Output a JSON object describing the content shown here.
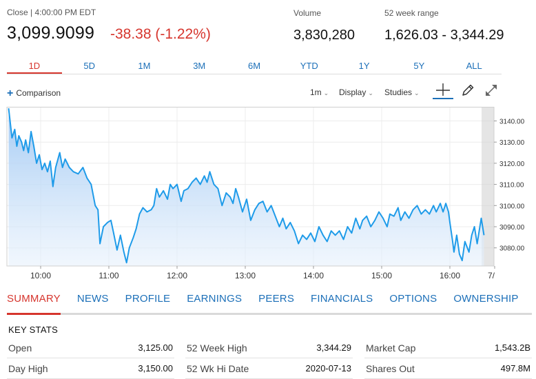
{
  "quote": {
    "close_label": "Close | 4:00:00 PM EDT",
    "price": "3,099.9099",
    "change": "-38.38 (-1.22%)",
    "volume_label": "Volume",
    "volume": "3,830,280",
    "range_label": "52 week range",
    "range": "1,626.03 - 3,344.29"
  },
  "time_ranges": [
    "1D",
    "5D",
    "1M",
    "3M",
    "6M",
    "YTD",
    "1Y",
    "5Y",
    "ALL"
  ],
  "toolbar": {
    "comparison": "Comparison",
    "interval": "1m",
    "display": "Display",
    "studies": "Studies",
    "icons": [
      "crosshair-icon",
      "pencil-icon",
      "expand-icon"
    ]
  },
  "chart_data": {
    "type": "line",
    "x_ticks": [
      "10:00",
      "11:00",
      "12:00",
      "13:00",
      "14:00",
      "15:00",
      "16:00",
      "7/"
    ],
    "y_ticks": [
      "3140.00",
      "3130.00",
      "3120.00",
      "3110.00",
      "3100.00",
      "3090.00",
      "3080.00"
    ],
    "ylim": [
      3072,
      3146
    ],
    "grid": true,
    "series": [
      {
        "points": [
          [
            9.53,
            3146
          ],
          [
            9.58,
            3132
          ],
          [
            9.62,
            3136
          ],
          [
            9.65,
            3128
          ],
          [
            9.68,
            3133
          ],
          [
            9.72,
            3130
          ],
          [
            9.75,
            3126
          ],
          [
            9.78,
            3131
          ],
          [
            9.82,
            3125
          ],
          [
            9.86,
            3135
          ],
          [
            9.9,
            3128
          ],
          [
            9.94,
            3120
          ],
          [
            9.98,
            3124
          ],
          [
            10.02,
            3117
          ],
          [
            10.06,
            3120
          ],
          [
            10.1,
            3116
          ],
          [
            10.14,
            3121
          ],
          [
            10.18,
            3109
          ],
          [
            10.22,
            3118
          ],
          [
            10.28,
            3125
          ],
          [
            10.32,
            3118
          ],
          [
            10.36,
            3122
          ],
          [
            10.42,
            3118
          ],
          [
            10.48,
            3116
          ],
          [
            10.55,
            3115
          ],
          [
            10.62,
            3118
          ],
          [
            10.68,
            3113
          ],
          [
            10.74,
            3110
          ],
          [
            10.8,
            3100
          ],
          [
            10.84,
            3098
          ],
          [
            10.87,
            3082
          ],
          [
            10.92,
            3090
          ],
          [
            10.98,
            3092
          ],
          [
            11.03,
            3093
          ],
          [
            11.07,
            3087
          ],
          [
            11.12,
            3079
          ],
          [
            11.17,
            3086
          ],
          [
            11.22,
            3078
          ],
          [
            11.26,
            3073
          ],
          [
            11.3,
            3080
          ],
          [
            11.36,
            3085
          ],
          [
            11.4,
            3089
          ],
          [
            11.45,
            3096
          ],
          [
            11.5,
            3099
          ],
          [
            11.56,
            3097
          ],
          [
            11.62,
            3098
          ],
          [
            11.66,
            3100
          ],
          [
            11.7,
            3108
          ],
          [
            11.74,
            3104
          ],
          [
            11.8,
            3107
          ],
          [
            11.86,
            3103
          ],
          [
            11.9,
            3110
          ],
          [
            11.94,
            3108
          ],
          [
            12.0,
            3110
          ],
          [
            12.06,
            3102
          ],
          [
            12.1,
            3107
          ],
          [
            12.16,
            3108
          ],
          [
            12.22,
            3111
          ],
          [
            12.28,
            3113
          ],
          [
            12.34,
            3110
          ],
          [
            12.4,
            3114
          ],
          [
            12.44,
            3111
          ],
          [
            12.48,
            3116
          ],
          [
            12.54,
            3110
          ],
          [
            12.6,
            3108
          ],
          [
            12.66,
            3100
          ],
          [
            12.72,
            3106
          ],
          [
            12.78,
            3104
          ],
          [
            12.82,
            3101
          ],
          [
            12.86,
            3108
          ],
          [
            12.9,
            3104
          ],
          [
            12.96,
            3097
          ],
          [
            13.02,
            3103
          ],
          [
            13.08,
            3093
          ],
          [
            13.14,
            3098
          ],
          [
            13.2,
            3101
          ],
          [
            13.26,
            3102
          ],
          [
            13.32,
            3097
          ],
          [
            13.38,
            3100
          ],
          [
            13.44,
            3095
          ],
          [
            13.5,
            3090
          ],
          [
            13.55,
            3094
          ],
          [
            13.6,
            3089
          ],
          [
            13.66,
            3092
          ],
          [
            13.72,
            3088
          ],
          [
            13.78,
            3082
          ],
          [
            13.84,
            3086
          ],
          [
            13.9,
            3084
          ],
          [
            13.96,
            3087
          ],
          [
            14.02,
            3083
          ],
          [
            14.08,
            3090
          ],
          [
            14.14,
            3086
          ],
          [
            14.2,
            3083
          ],
          [
            14.26,
            3088
          ],
          [
            14.32,
            3086
          ],
          [
            14.38,
            3088
          ],
          [
            14.44,
            3084
          ],
          [
            14.5,
            3090
          ],
          [
            14.56,
            3087
          ],
          [
            14.62,
            3094
          ],
          [
            14.68,
            3089
          ],
          [
            14.72,
            3093
          ],
          [
            14.78,
            3095
          ],
          [
            14.84,
            3090
          ],
          [
            14.9,
            3093
          ],
          [
            14.96,
            3097
          ],
          [
            15.02,
            3094
          ],
          [
            15.08,
            3090
          ],
          [
            15.12,
            3096
          ],
          [
            15.18,
            3095
          ],
          [
            15.24,
            3099
          ],
          [
            15.28,
            3093
          ],
          [
            15.34,
            3097
          ],
          [
            15.4,
            3094
          ],
          [
            15.46,
            3098
          ],
          [
            15.52,
            3100
          ],
          [
            15.58,
            3096
          ],
          [
            15.64,
            3098
          ],
          [
            15.7,
            3096
          ],
          [
            15.76,
            3100
          ],
          [
            15.8,
            3097
          ],
          [
            15.86,
            3101
          ],
          [
            15.9,
            3097
          ],
          [
            15.94,
            3101
          ],
          [
            15.98,
            3097
          ],
          [
            16.0,
            3092
          ],
          [
            16.04,
            3083
          ],
          [
            16.06,
            3078
          ],
          [
            16.1,
            3086
          ],
          [
            16.14,
            3077
          ],
          [
            16.18,
            3074
          ],
          [
            16.22,
            3083
          ],
          [
            16.28,
            3078
          ],
          [
            16.32,
            3086
          ],
          [
            16.36,
            3090
          ],
          [
            16.4,
            3082
          ],
          [
            16.46,
            3094
          ],
          [
            16.5,
            3086
          ]
        ]
      }
    ]
  },
  "tabs": [
    "SUMMARY",
    "NEWS",
    "PROFILE",
    "EARNINGS",
    "PEERS",
    "FINANCIALS",
    "OPTIONS",
    "OWNERSHIP"
  ],
  "key_stats": {
    "title": "KEY STATS",
    "columns": [
      [
        {
          "label": "Open",
          "value": "3,125.00"
        },
        {
          "label": "Day High",
          "value": "3,150.00"
        }
      ],
      [
        {
          "label": "52 Week High",
          "value": "3,344.29"
        },
        {
          "label": "52 Wk Hi Date",
          "value": "2020-07-13"
        }
      ],
      [
        {
          "label": "Market Cap",
          "value": "1,543.2B"
        },
        {
          "label": "Shares Out",
          "value": "497.8M"
        }
      ]
    ]
  },
  "colors": {
    "accent_red": "#d6352d",
    "link_blue": "#1b6fb8",
    "line_blue": "#1e9be9"
  }
}
